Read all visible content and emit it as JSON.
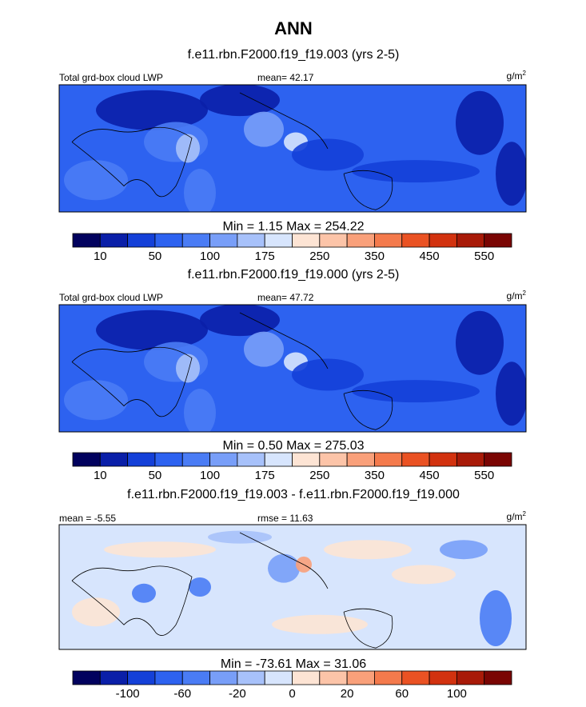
{
  "title": "ANN",
  "panels": [
    {
      "case": "f.e11.rbn.F2000.f19_f19.003 (yrs 2-5)",
      "left_label": "Total grd-box cloud LWP",
      "center_label": "mean=  42.17",
      "units": "g/m",
      "units_sup": "2",
      "stats": "Min =   1.15 Max = 254.22",
      "colorbar": {
        "colors": [
          "#02025e",
          "#0a1fa8",
          "#1440d8",
          "#2d62f0",
          "#4a7cf5",
          "#789ef8",
          "#a7c1fa",
          "#d7e5fd",
          "#fde4d4",
          "#fcc4a8",
          "#f9a07a",
          "#f47a4c",
          "#ea5223",
          "#d2320f",
          "#a81a08",
          "#7a0503"
        ],
        "labels": [
          "10",
          "50",
          "100",
          "175",
          "250",
          "350",
          "450",
          "550"
        ]
      }
    },
    {
      "case": "f.e11.rbn.F2000.f19_f19.000 (yrs 2-5)",
      "left_label": "Total grd-box cloud LWP",
      "center_label": "mean=  47.72",
      "units": "g/m",
      "units_sup": "2",
      "stats": "Min =   0.50 Max = 275.03",
      "colorbar": {
        "colors": [
          "#02025e",
          "#0a1fa8",
          "#1440d8",
          "#2d62f0",
          "#4a7cf5",
          "#789ef8",
          "#a7c1fa",
          "#d7e5fd",
          "#fde4d4",
          "#fcc4a8",
          "#f9a07a",
          "#f47a4c",
          "#ea5223",
          "#d2320f",
          "#a81a08",
          "#7a0503"
        ],
        "labels": [
          "10",
          "50",
          "100",
          "175",
          "250",
          "350",
          "450",
          "550"
        ]
      }
    },
    {
      "case": "f.e11.rbn.F2000.f19_f19.003 - f.e11.rbn.F2000.f19_f19.000",
      "left_label": "mean =  -5.55",
      "center_label": "rmse =  11.63",
      "units": "g/m",
      "units_sup": "2",
      "stats": "Min = -73.61 Max =  31.06",
      "colorbar": {
        "colors": [
          "#02025e",
          "#0a1fa8",
          "#1440d8",
          "#2d62f0",
          "#4a7cf5",
          "#789ef8",
          "#a7c1fa",
          "#d7e5fd",
          "#fde4d4",
          "#fcc4a8",
          "#f9a07a",
          "#f47a4c",
          "#ea5223",
          "#d2320f",
          "#a81a08",
          "#7a0503"
        ],
        "labels": [
          "-100",
          "-60",
          "-20",
          "0",
          "20",
          "60",
          "100"
        ]
      }
    }
  ]
}
